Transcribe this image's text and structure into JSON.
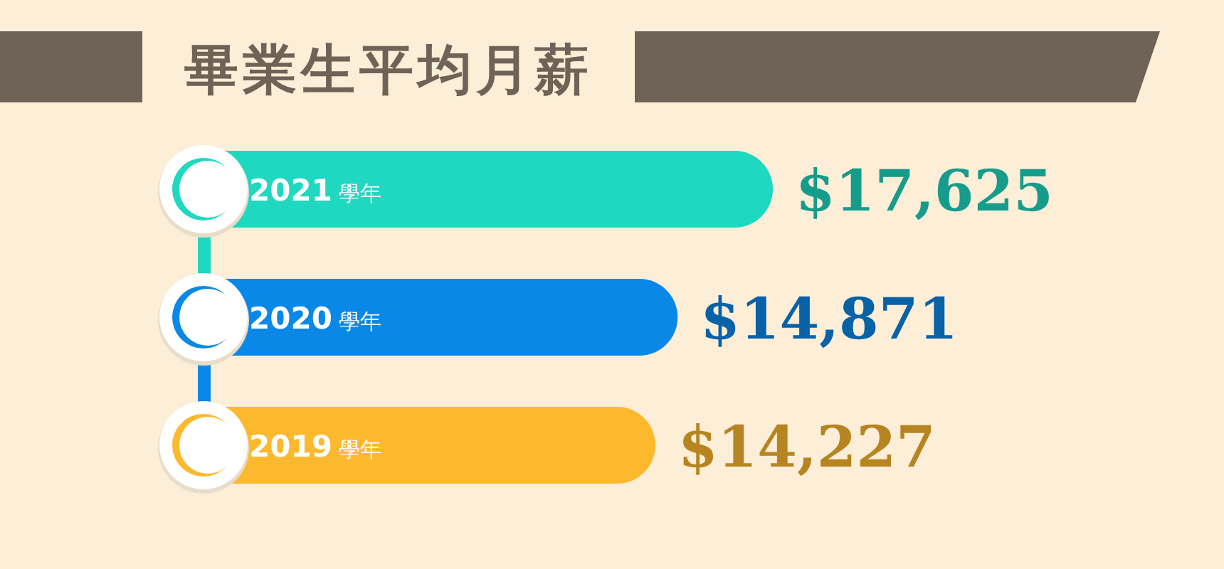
{
  "chart_data": {
    "type": "bar",
    "orientation": "horizontal",
    "title": "畢業生平均月薪",
    "categories": [
      "2021 學年",
      "2020 學年",
      "2019 學年"
    ],
    "values": [
      17625,
      14871,
      14227
    ],
    "colors": [
      "#1fd8c0",
      "#0a88e8",
      "#fdb92e"
    ],
    "value_labels": [
      "$17,625",
      "$14,871",
      "$14,227"
    ]
  }
}
